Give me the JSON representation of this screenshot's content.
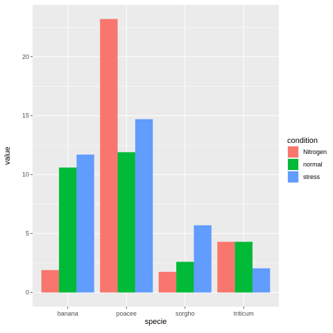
{
  "chart_data": {
    "type": "bar",
    "title": "",
    "xlabel": "specie",
    "ylabel": "value",
    "categories": [
      "banana",
      "poacee",
      "sorgho",
      "triticum"
    ],
    "series": [
      {
        "name": "Nitrogen",
        "color": "#F8766D",
        "values": [
          1.9,
          23.2,
          1.75,
          4.3
        ]
      },
      {
        "name": "normal",
        "color": "#00BA38",
        "values": [
          10.6,
          11.9,
          2.6,
          4.3
        ]
      },
      {
        "name": "stress",
        "color": "#619CFF",
        "values": [
          11.7,
          14.7,
          5.7,
          2.05
        ]
      }
    ],
    "ylim": [
      -1.2,
      24.4
    ],
    "yticks": [
      0,
      5,
      10,
      15,
      20
    ],
    "grid": true,
    "legend": {
      "title": "condition",
      "position": "right"
    },
    "panel_background": "#EBEBEB",
    "grid_color": "#FFFFFF"
  }
}
